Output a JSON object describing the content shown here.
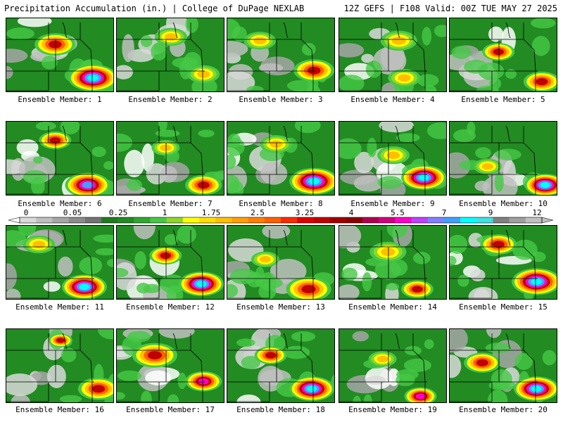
{
  "header": {
    "left_title": "Precipitation Accumulation (in.) | College of DuPage NEXLAB",
    "right_title": "12Z GEFS | F108 Valid: 00Z TUE MAY 27 2025"
  },
  "member_label_prefix": "Ensemble Member:",
  "members": [
    {
      "label": "Ensemble Member: 1"
    },
    {
      "label": "Ensemble Member: 2"
    },
    {
      "label": "Ensemble Member: 3"
    },
    {
      "label": "Ensemble Member: 4"
    },
    {
      "label": "Ensemble Member: 5"
    },
    {
      "label": "Ensemble Member: 6"
    },
    {
      "label": "Ensemble Member: 7"
    },
    {
      "label": "Ensemble Member: 8"
    },
    {
      "label": "Ensemble Member: 9"
    },
    {
      "label": "Ensemble Member: 10"
    },
    {
      "label": "Ensemble Member: 11"
    },
    {
      "label": "Ensemble Member: 12"
    },
    {
      "label": "Ensemble Member: 13"
    },
    {
      "label": "Ensemble Member: 14"
    },
    {
      "label": "Ensemble Member: 15"
    },
    {
      "label": "Ensemble Member: 16"
    },
    {
      "label": "Ensemble Member: 17"
    },
    {
      "label": "Ensemble Member: 18"
    },
    {
      "label": "Ensemble Member: 19"
    },
    {
      "label": "Ensemble Member: 20"
    }
  ],
  "colorbar": {
    "tick_labels": [
      "0",
      "0.05",
      "0.25",
      "1",
      "1.75",
      "2.5",
      "3.25",
      "4",
      "5.5",
      "7",
      "9",
      "12"
    ],
    "colors": [
      "#d9d9d9",
      "#bfbfbf",
      "#a6a6a6",
      "#8c8c8c",
      "#737373",
      "#1e7b1e",
      "#228b22",
      "#2ea82e",
      "#46c846",
      "#8fd62a",
      "#ffff00",
      "#ffdf00",
      "#ffbf00",
      "#ff9f00",
      "#ff7f00",
      "#ff5f00",
      "#ff2a00",
      "#e00000",
      "#c00000",
      "#a00000",
      "#8b0000",
      "#b0004f",
      "#d0007f",
      "#ff00c8",
      "#c040ff",
      "#8080ff",
      "#40a0ff",
      "#00ffff",
      "#40e0e0",
      "#808080",
      "#a0a0a0",
      "#c0c0c0"
    ]
  }
}
